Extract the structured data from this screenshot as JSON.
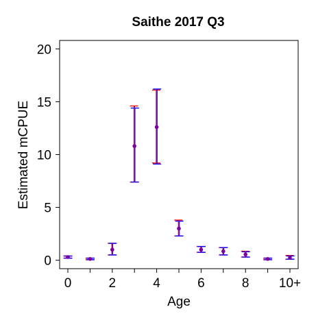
{
  "chart_data": {
    "type": "errorbar",
    "title": "Saithe 2017 Q3",
    "xlabel": "Age",
    "ylabel": "Estimated mCPUE",
    "categories": [
      "0",
      "1",
      "2",
      "3",
      "4",
      "5",
      "6",
      "7",
      "8",
      "9",
      "10+"
    ],
    "x_tick_labels": [
      "0",
      "",
      "2",
      "",
      "4",
      "",
      "6",
      "",
      "8",
      "",
      "10+"
    ],
    "ylim": [
      -0.8,
      20.8
    ],
    "yticks": [
      0,
      5,
      10,
      15,
      20
    ],
    "grid": false,
    "series": [
      {
        "color": "#ff0000",
        "lower": [
          0.2,
          0.05,
          0.5,
          7.4,
          9.2,
          2.3,
          0.75,
          0.5,
          0.3,
          0.05,
          0.1
        ],
        "upper": [
          0.4,
          0.2,
          1.6,
          14.6,
          16.1,
          3.8,
          1.3,
          1.2,
          0.85,
          0.2,
          0.45
        ]
      },
      {
        "color": "#0000ff",
        "lower": [
          0.2,
          0.05,
          0.5,
          7.4,
          9.1,
          2.3,
          0.75,
          0.5,
          0.3,
          0.05,
          0.1
        ],
        "upper": [
          0.4,
          0.2,
          1.6,
          14.4,
          16.2,
          3.7,
          1.3,
          1.2,
          0.8,
          0.2,
          0.4
        ]
      }
    ],
    "points": {
      "color": "#7a00a0",
      "values": [
        0.3,
        0.12,
        1.0,
        10.8,
        12.6,
        3.0,
        1.0,
        0.85,
        0.55,
        0.12,
        0.25
      ]
    }
  }
}
